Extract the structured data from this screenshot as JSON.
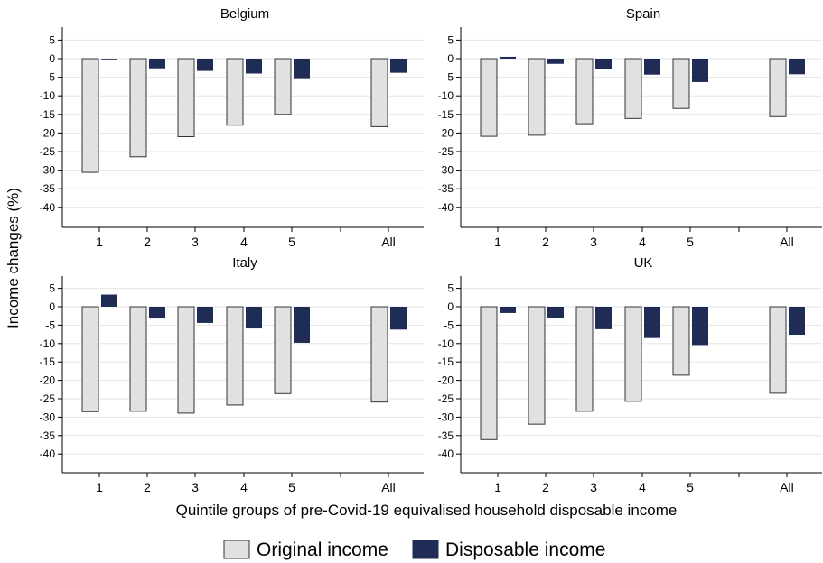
{
  "chart_data": {
    "type": "bar",
    "ylabel": "Income changes (%)",
    "xlabel": "Quintile groups of pre-Covid-19 equivalised household disposable income",
    "categories": [
      "1",
      "2",
      "3",
      "4",
      "5",
      "All"
    ],
    "yticks": [
      5,
      0,
      -5,
      -10,
      -15,
      -20,
      -25,
      -30,
      -35,
      -40
    ],
    "ylim": [
      -45,
      9
    ],
    "grid": true,
    "legend_position": "bottom",
    "colors": {
      "original": "#e1e1e1",
      "disposable": "#1f2d56",
      "grid": "#e6e6e6",
      "bar_outline": "#333333"
    },
    "legend": [
      {
        "key": "original",
        "label": "Original income"
      },
      {
        "key": "disposable",
        "label": "Disposable income"
      }
    ],
    "panels": [
      {
        "title": "Belgium",
        "series": [
          {
            "name": "Original income",
            "values": [
              -30.6,
              -26.4,
              -21.0,
              -17.9,
              -15.0,
              -18.3
            ]
          },
          {
            "name": "Disposable income",
            "values": [
              -0.2,
              -2.6,
              -3.3,
              -4.0,
              -5.5,
              -3.8
            ]
          }
        ]
      },
      {
        "title": "Spain",
        "series": [
          {
            "name": "Original income",
            "values": [
              -20.9,
              -20.6,
              -17.5,
              -16.1,
              -13.4,
              -15.6
            ]
          },
          {
            "name": "Disposable income",
            "values": [
              0.5,
              -1.4,
              -2.8,
              -4.3,
              -6.3,
              -4.2
            ]
          }
        ]
      },
      {
        "title": "Italy",
        "series": [
          {
            "name": "Original income",
            "values": [
              -28.5,
              -28.4,
              -28.9,
              -26.7,
              -23.6,
              -25.9
            ]
          },
          {
            "name": "Disposable income",
            "values": [
              3.3,
              -3.2,
              -4.4,
              -5.9,
              -9.8,
              -6.2
            ]
          }
        ]
      },
      {
        "title": "UK",
        "series": [
          {
            "name": "Original income",
            "values": [
              -36.1,
              -31.9,
              -28.4,
              -25.7,
              -18.6,
              -23.5
            ]
          },
          {
            "name": "Disposable income",
            "values": [
              -1.7,
              -3.1,
              -6.1,
              -8.5,
              -10.4,
              -7.6
            ]
          }
        ]
      }
    ]
  }
}
